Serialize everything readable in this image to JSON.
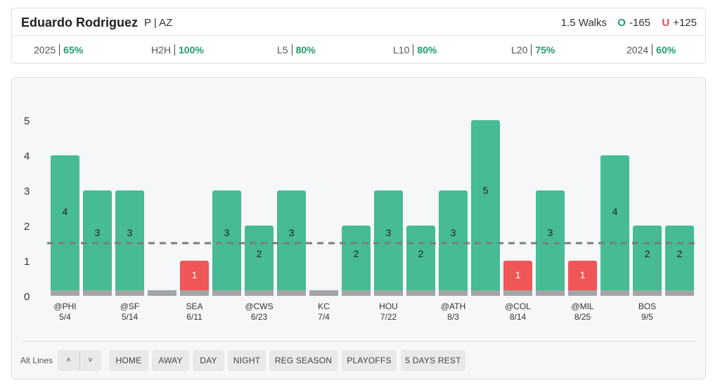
{
  "header": {
    "player_name": "Eduardo Rodriguez",
    "player_meta": "P | AZ",
    "prop_line": "1.5 Walks",
    "over_symbol": "O",
    "over_odds": "-165",
    "under_symbol": "U",
    "under_odds": "+125"
  },
  "stats": [
    {
      "label": "2025",
      "value": "65%"
    },
    {
      "label": "H2H",
      "value": "100%"
    },
    {
      "label": "L5",
      "value": "80%"
    },
    {
      "label": "L10",
      "value": "80%"
    },
    {
      "label": "L20",
      "value": "75%"
    },
    {
      "label": "2024",
      "value": "60%"
    }
  ],
  "colors": {
    "over": "#47bb93",
    "under": "#ef5656",
    "neutral": "#a3a5a8",
    "accent": "#1f9e6a",
    "line": "#7a7c7f"
  },
  "chart_data": {
    "type": "bar",
    "title": "",
    "xlabel": "",
    "ylabel": "",
    "ylim": [
      0,
      5
    ],
    "yticks": [
      0,
      1,
      2,
      3,
      4,
      5
    ],
    "threshold": 1.5,
    "games": [
      {
        "opp": "@PHI",
        "date": "5/4",
        "value": 4
      },
      {
        "opp": "",
        "date": "",
        "value": 3
      },
      {
        "opp": "@SF",
        "date": "5/14",
        "value": 3
      },
      {
        "opp": "",
        "date": "",
        "value": 0
      },
      {
        "opp": "SEA",
        "date": "6/11",
        "value": 1
      },
      {
        "opp": "",
        "date": "",
        "value": 3
      },
      {
        "opp": "@CWS",
        "date": "6/23",
        "value": 2
      },
      {
        "opp": "",
        "date": "",
        "value": 3
      },
      {
        "opp": "KC",
        "date": "7/4",
        "value": 0
      },
      {
        "opp": "",
        "date": "",
        "value": 2
      },
      {
        "opp": "HOU",
        "date": "7/22",
        "value": 3
      },
      {
        "opp": "",
        "date": "",
        "value": 2
      },
      {
        "opp": "@ATH",
        "date": "8/3",
        "value": 3
      },
      {
        "opp": "",
        "date": "",
        "value": 5
      },
      {
        "opp": "@COL",
        "date": "8/14",
        "value": 1
      },
      {
        "opp": "",
        "date": "",
        "value": 3
      },
      {
        "opp": "@MIL",
        "date": "8/25",
        "value": 1
      },
      {
        "opp": "",
        "date": "",
        "value": 4
      },
      {
        "opp": "BOS",
        "date": "9/5",
        "value": 2
      },
      {
        "opp": "",
        "date": "",
        "value": 2
      }
    ]
  },
  "filters": {
    "alt_lines_label": "Alt Lines",
    "up_symbol": "˄",
    "down_symbol": "˅",
    "chips": [
      "HOME",
      "AWAY",
      "DAY",
      "NIGHT",
      "REG SEASON",
      "PLAYOFFS",
      "5 DAYS REST"
    ]
  }
}
